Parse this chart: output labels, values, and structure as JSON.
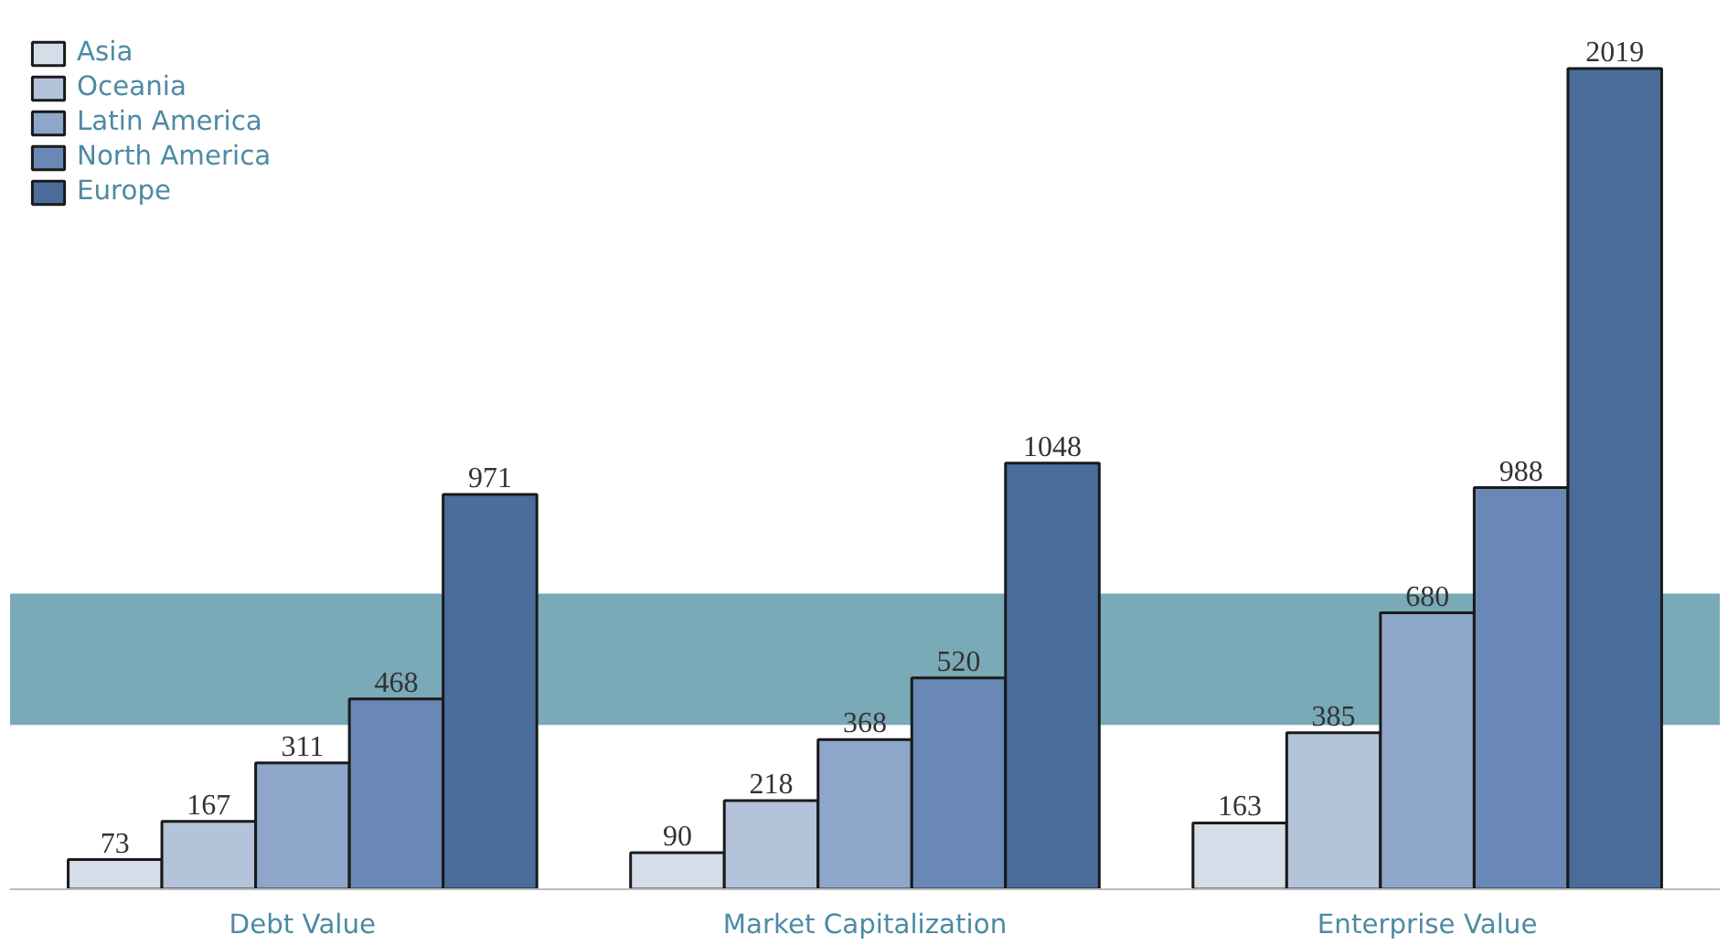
{
  "chart_data": {
    "type": "bar",
    "categories": [
      "Debt Value",
      "Market Capitalization",
      "Enterprise Value"
    ],
    "series": [
      {
        "name": "Asia",
        "color": "#d5dde8",
        "values": [
          73,
          90,
          163
        ]
      },
      {
        "name": "Oceania",
        "color": "#b3c3d9",
        "values": [
          167,
          218,
          385
        ]
      },
      {
        "name": "Latin America",
        "color": "#8ea6c9",
        "values": [
          311,
          368,
          680
        ]
      },
      {
        "name": "North America",
        "color": "#6a88b6",
        "values": [
          468,
          520,
          988
        ]
      },
      {
        "name": "Europe",
        "color": "#4a6d9b",
        "values": [
          971,
          1048,
          2019
        ]
      }
    ],
    "bands": [
      {
        "axis": "y",
        "from": 404,
        "to": 727,
        "color": "#7aa9b8"
      }
    ],
    "data_labels": true,
    "legend": "top left",
    "grid": false
  }
}
